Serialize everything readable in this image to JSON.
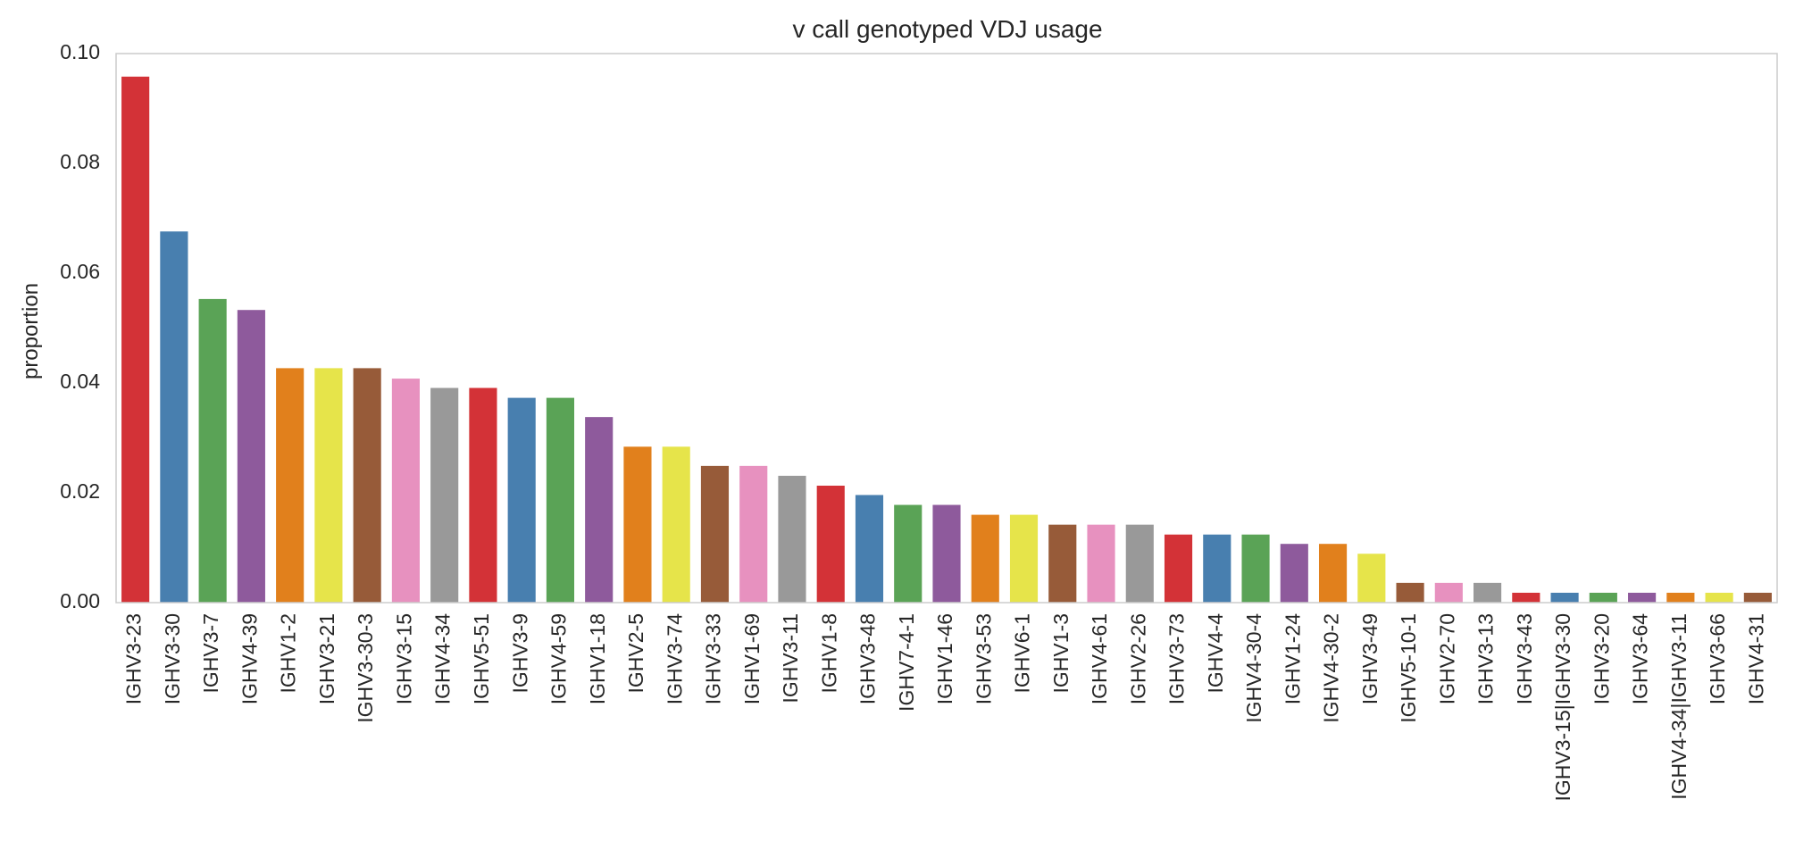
{
  "chart_data": {
    "type": "bar",
    "title": "v call genotyped VDJ usage",
    "xlabel": "",
    "ylabel": "proportion",
    "ylim": [
      0,
      0.1
    ],
    "yticks": [
      "0.00",
      "0.02",
      "0.04",
      "0.06",
      "0.08",
      "0.10"
    ],
    "ytick_values": [
      0,
      0.02,
      0.04,
      0.06,
      0.08,
      0.1
    ],
    "grid": false,
    "categories": [
      "IGHV3-23",
      "IGHV3-30",
      "IGHV3-7",
      "IGHV4-39",
      "IGHV1-2",
      "IGHV3-21",
      "IGHV3-30-3",
      "IGHV3-15",
      "IGHV4-34",
      "IGHV5-51",
      "IGHV3-9",
      "IGHV4-59",
      "IGHV1-18",
      "IGHV2-5",
      "IGHV3-74",
      "IGHV3-33",
      "IGHV1-69",
      "IGHV3-11",
      "IGHV1-8",
      "IGHV3-48",
      "IGHV7-4-1",
      "IGHV1-46",
      "IGHV3-53",
      "IGHV6-1",
      "IGHV1-3",
      "IGHV4-61",
      "IGHV2-26",
      "IGHV3-73",
      "IGHV4-4",
      "IGHV4-30-4",
      "IGHV1-24",
      "IGHV4-30-2",
      "IGHV3-49",
      "IGHV5-10-1",
      "IGHV2-70",
      "IGHV3-13",
      "IGHV3-43",
      "IGHV3-15|IGHV3-30",
      "IGHV3-20",
      "IGHV3-64",
      "IGHV4-34|IGHV3-11",
      "IGHV3-66",
      "IGHV4-31"
    ],
    "values": [
      0.0958,
      0.0676,
      0.0553,
      0.0533,
      0.0427,
      0.0427,
      0.0427,
      0.0408,
      0.0391,
      0.0391,
      0.0373,
      0.0373,
      0.0338,
      0.0284,
      0.0284,
      0.0249,
      0.0249,
      0.0231,
      0.0213,
      0.0196,
      0.0178,
      0.0178,
      0.016,
      0.016,
      0.0142,
      0.0142,
      0.0142,
      0.0124,
      0.0124,
      0.0124,
      0.0107,
      0.0107,
      0.0089,
      0.0036,
      0.0036,
      0.0036,
      0.0018,
      0.0018,
      0.0018,
      0.0018,
      0.0018,
      0.0018,
      0.0018
    ],
    "palette": [
      "#d33237",
      "#487faf",
      "#5aa356",
      "#8e5a9c",
      "#e1801c",
      "#e6e44a",
      "#975b39",
      "#e791bf",
      "#999999"
    ]
  }
}
